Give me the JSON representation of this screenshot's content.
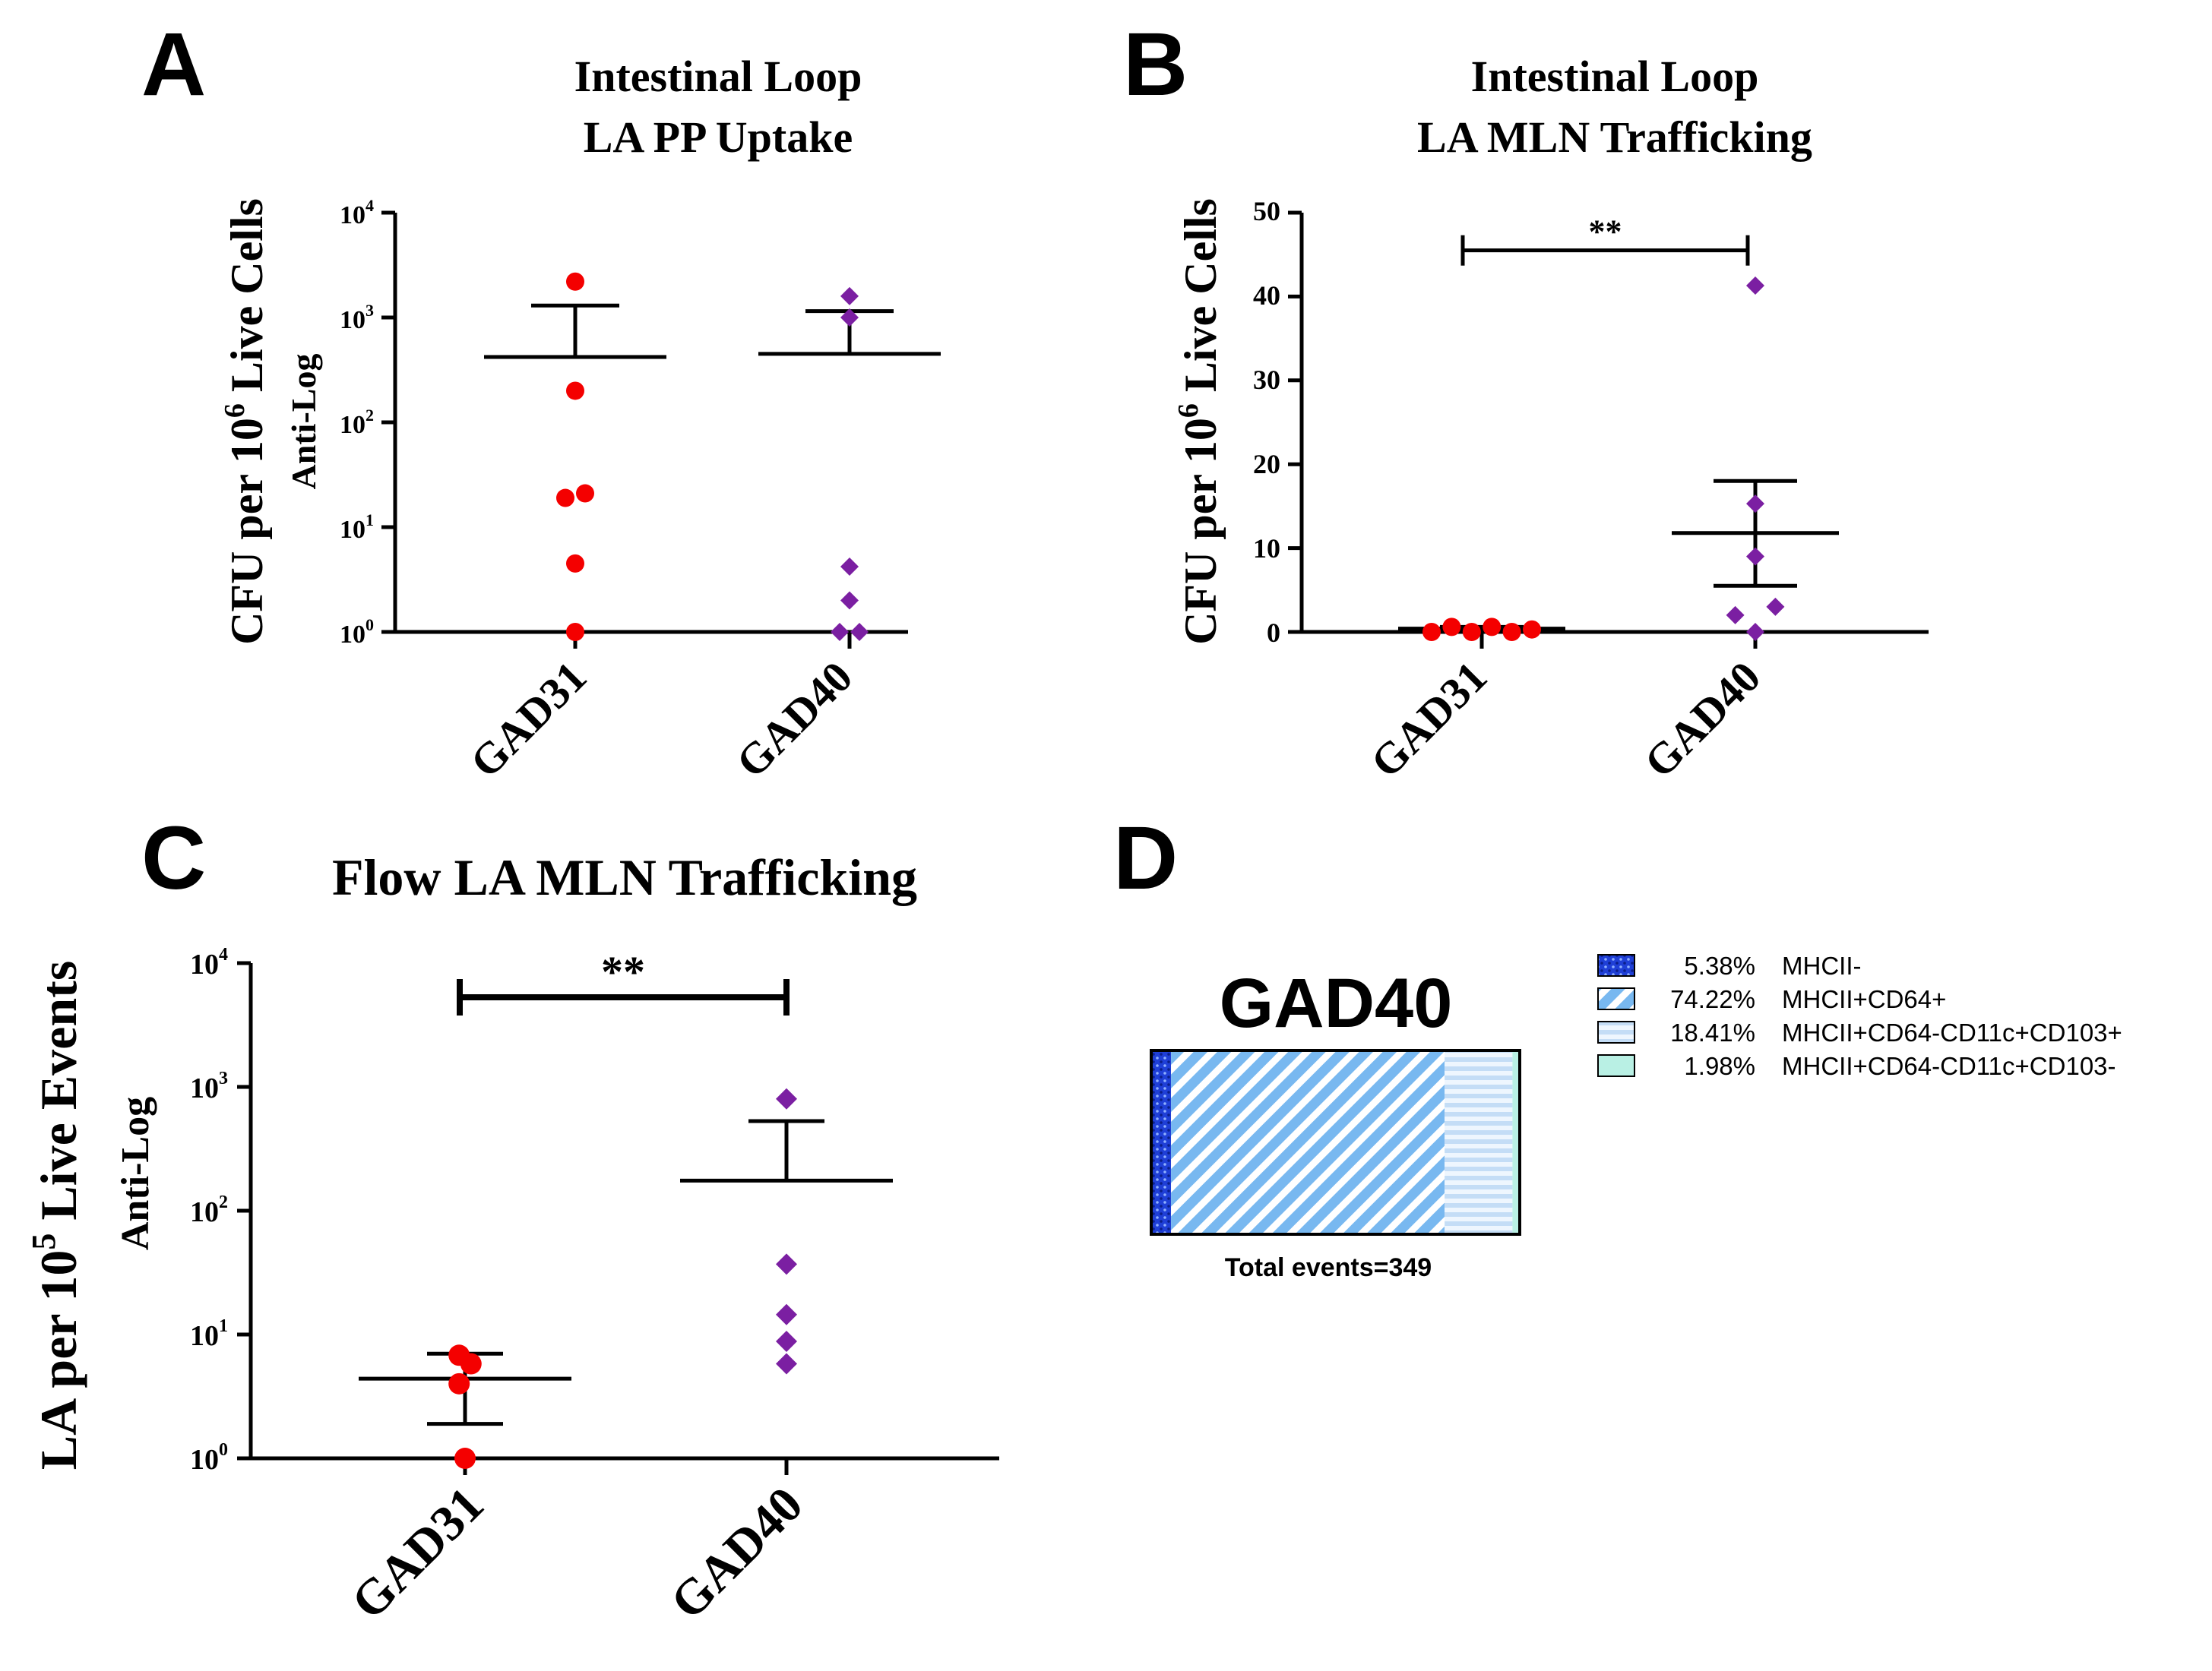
{
  "colors": {
    "gad31": "#f40000",
    "gad40": "#7b1fa2",
    "axis": "#000000",
    "seg_mhcii_neg": "#1f3fd6",
    "seg_cd64": "#78b8f0",
    "seg_cd103pos": "#cfe4f8",
    "seg_cd103neg": "#b9f0e4"
  },
  "chart_data": [
    {
      "panel": "A",
      "type": "scatter",
      "title": [
        "Intestinal Loop",
        "LA PP Uptake"
      ],
      "ylabel": {
        "main": "CFU per 10",
        "sup": "6",
        "tail": " Live Cells",
        "sub": "Anti-Log"
      },
      "yscale": "log",
      "ylim": [
        1,
        10000
      ],
      "yticks": [
        {
          "value": 1,
          "base": "10",
          "exp": "0"
        },
        {
          "value": 10,
          "base": "10",
          "exp": "1"
        },
        {
          "value": 100,
          "base": "10",
          "exp": "2"
        },
        {
          "value": 1000,
          "base": "10",
          "exp": "3"
        },
        {
          "value": 10000,
          "base": "10",
          "exp": "4"
        }
      ],
      "categories": [
        "GAD31",
        "GAD40"
      ],
      "series": [
        {
          "name": "GAD31",
          "marker": "circle",
          "color_key": "gad31",
          "points": [
            {
              "offset": 0,
              "y": 2200
            },
            {
              "offset": 0,
              "y": 200
            },
            {
              "offset": -0.1,
              "y": 19
            },
            {
              "offset": 0.1,
              "y": 21
            },
            {
              "offset": 0,
              "y": 4.5
            },
            {
              "offset": 0,
              "y": 1
            }
          ],
          "mean": 420,
          "err_upper": 1300,
          "err_lower": null
        },
        {
          "name": "GAD40",
          "marker": "diamond",
          "color_key": "gad40",
          "points": [
            {
              "offset": 0,
              "y": 1600
            },
            {
              "offset": 0,
              "y": 1000
            },
            {
              "offset": 0,
              "y": 4.2
            },
            {
              "offset": 0,
              "y": 2
            },
            {
              "offset": -0.1,
              "y": 1
            },
            {
              "offset": 0.1,
              "y": 1
            }
          ],
          "mean": 450,
          "err_upper": 1150,
          "err_lower": null
        }
      ],
      "significance": null
    },
    {
      "panel": "B",
      "type": "scatter",
      "title": [
        "Intestinal Loop",
        "LA MLN Trafficking"
      ],
      "ylabel": {
        "main": "CFU per 10",
        "sup": "6",
        "tail": " Live Cells",
        "sub": ""
      },
      "yscale": "linear",
      "ylim": [
        0,
        50
      ],
      "yticks": [
        {
          "value": 0,
          "label": "0"
        },
        {
          "value": 10,
          "label": "10"
        },
        {
          "value": 20,
          "label": "20"
        },
        {
          "value": 30,
          "label": "30"
        },
        {
          "value": 40,
          "label": "40"
        },
        {
          "value": 50,
          "label": "50"
        }
      ],
      "categories": [
        "GAD31",
        "GAD40"
      ],
      "series": [
        {
          "name": "GAD31",
          "marker": "circle",
          "color_key": "gad31",
          "points": [
            {
              "offset": -0.3,
              "y": 0
            },
            {
              "offset": -0.18,
              "y": 0.6
            },
            {
              "offset": -0.06,
              "y": 0
            },
            {
              "offset": 0.06,
              "y": 0.6
            },
            {
              "offset": 0.18,
              "y": 0
            },
            {
              "offset": 0.3,
              "y": 0.3
            }
          ],
          "mean": 0.4,
          "err_upper": 0.6,
          "err_lower": 0.2
        },
        {
          "name": "GAD40",
          "marker": "diamond",
          "color_key": "gad40",
          "points": [
            {
              "offset": 0,
              "y": 41.3
            },
            {
              "offset": 0,
              "y": 15.3
            },
            {
              "offset": 0,
              "y": 9
            },
            {
              "offset": 0.12,
              "y": 3
            },
            {
              "offset": -0.12,
              "y": 2
            },
            {
              "offset": 0,
              "y": 0
            }
          ],
          "mean": 11.8,
          "err_upper": 18,
          "err_lower": 5.5
        }
      ],
      "significance": {
        "label": "**",
        "y": 45.5
      }
    },
    {
      "panel": "C",
      "type": "scatter",
      "title": [
        "Flow LA MLN Trafficking"
      ],
      "ylabel": {
        "main": "LA per 10",
        "sup": "5",
        "tail": " Live Events",
        "sub": "Anti-Log"
      },
      "yscale": "log",
      "ylim": [
        1,
        10000
      ],
      "yticks": [
        {
          "value": 1,
          "base": "10",
          "exp": "0"
        },
        {
          "value": 10,
          "base": "10",
          "exp": "1"
        },
        {
          "value": 100,
          "base": "10",
          "exp": "2"
        },
        {
          "value": 1000,
          "base": "10",
          "exp": "3"
        },
        {
          "value": 10000,
          "base": "10",
          "exp": "4"
        }
      ],
      "categories": [
        "GAD31",
        "GAD40"
      ],
      "series": [
        {
          "name": "GAD31",
          "marker": "circle",
          "color_key": "gad31",
          "points": [
            {
              "offset": -0.06,
              "y": 6.8
            },
            {
              "offset": 0.06,
              "y": 5.8
            },
            {
              "offset": -0.06,
              "y": 4
            },
            {
              "offset": 0,
              "y": 1
            }
          ],
          "mean": 4.4,
          "err_upper": 7,
          "err_lower": 1.9
        },
        {
          "name": "GAD40",
          "marker": "diamond",
          "color_key": "gad40",
          "points": [
            {
              "offset": 0,
              "y": 800
            },
            {
              "offset": 0,
              "y": 37
            },
            {
              "offset": 0,
              "y": 14.5
            },
            {
              "offset": 0,
              "y": 8.8
            },
            {
              "offset": 0,
              "y": 5.8
            }
          ],
          "mean": 175,
          "err_upper": 530,
          "err_lower": null
        }
      ],
      "significance": {
        "label": "**",
        "y": 5300
      }
    },
    {
      "panel": "D",
      "type": "bar",
      "title": "GAD40",
      "orientation": "horizontal-stacked",
      "categories": [
        "GAD40"
      ],
      "series": [
        {
          "name": "MHCII-",
          "value": 5.38,
          "label": "5.38%",
          "color_key": "seg_mhcii_neg",
          "pattern": "dots"
        },
        {
          "name": "MHCII+CD64+",
          "value": 74.22,
          "label": "74.22%",
          "color_key": "seg_cd64",
          "pattern": "diagonal"
        },
        {
          "name": "MHCII+CD64-CD11c+CD103+",
          "value": 18.41,
          "label": "18.41%",
          "color_key": "seg_cd103pos",
          "pattern": "horizontal"
        },
        {
          "name": "MHCII+CD64-CD11c+CD103-",
          "value": 1.98,
          "label": "1.98%",
          "color_key": "seg_cd103neg",
          "pattern": "solid"
        }
      ],
      "footnote": "Total events=349",
      "legend_position": "right"
    }
  ]
}
